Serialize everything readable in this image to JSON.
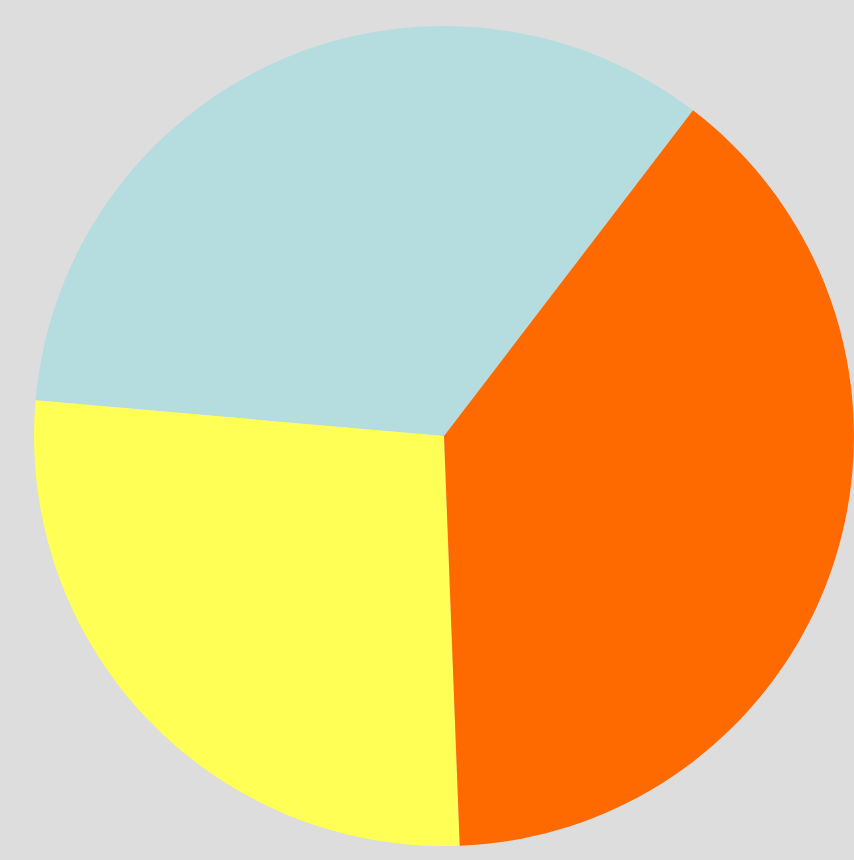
{
  "chart_data": {
    "type": "pie",
    "categories": [
      null,
      null,
      null
    ],
    "values": [
      34,
      27,
      39
    ],
    "colors": [
      "#b5dde0",
      "#ffff55",
      "#ff6a00"
    ]
  }
}
